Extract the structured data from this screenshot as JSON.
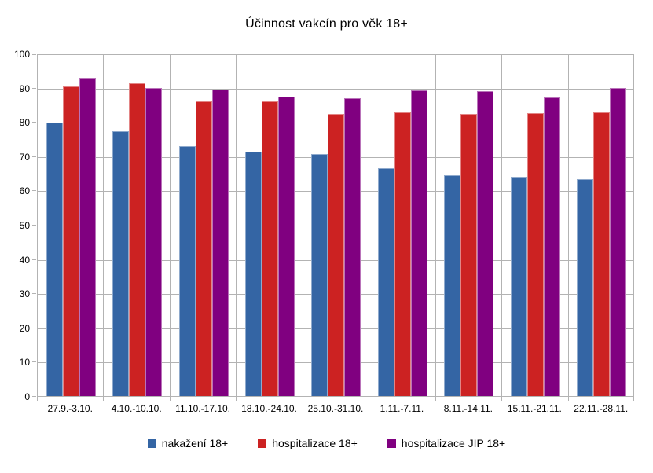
{
  "chart_data": {
    "type": "bar",
    "title": "Účinnost vakcín pro věk 18+",
    "categories": [
      "27.9.-3.10.",
      "4.10.-10.10.",
      "11.10.-17.10.",
      "18.10.-24.10.",
      "25.10.-31.10.",
      "1.11.-7.11.",
      "8.11.-14.11.",
      "15.11.-21.11.",
      "22.11.-28.11."
    ],
    "series": [
      {
        "name": "nakažení 18+",
        "color": "#3465a4",
        "values": [
          79.8,
          77.2,
          73.0,
          71.3,
          70.7,
          66.5,
          64.5,
          64.0,
          63.3
        ]
      },
      {
        "name": "hospitalizace 18+",
        "color": "#cc2222",
        "values": [
          90.3,
          91.4,
          86.0,
          86.0,
          82.3,
          82.7,
          82.3,
          82.6,
          82.7
        ]
      },
      {
        "name": "hospitalizace JIP 18+",
        "color": "#800080",
        "values": [
          93.0,
          90.0,
          89.5,
          87.5,
          87.0,
          89.3,
          89.0,
          87.2,
          89.8
        ]
      }
    ],
    "xlabel": "",
    "ylabel": "",
    "ylim": [
      0,
      100
    ],
    "ytick_step": 10,
    "yticks": [
      "0",
      "10",
      "20",
      "30",
      "40",
      "50",
      "60",
      "70",
      "80",
      "90",
      "100"
    ],
    "grid": true,
    "grid_color": "#b3b3b3",
    "legend_position": "bottom",
    "background_color": "#ffffff",
    "text_color": "#000000"
  }
}
